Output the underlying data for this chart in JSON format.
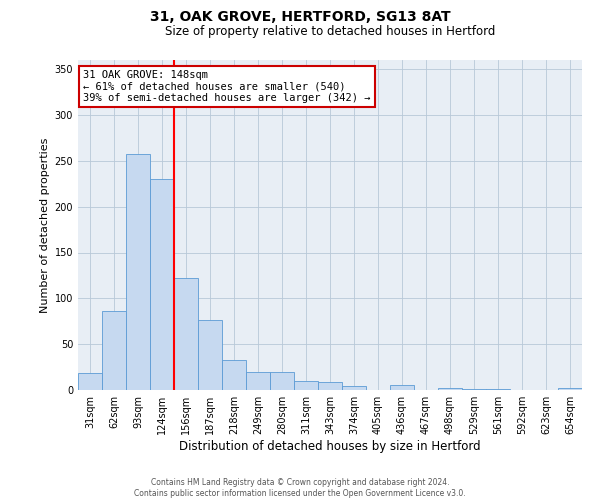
{
  "title": "31, OAK GROVE, HERTFORD, SG13 8AT",
  "subtitle": "Size of property relative to detached houses in Hertford",
  "xlabel": "Distribution of detached houses by size in Hertford",
  "ylabel": "Number of detached properties",
  "categories": [
    "31sqm",
    "62sqm",
    "93sqm",
    "124sqm",
    "156sqm",
    "187sqm",
    "218sqm",
    "249sqm",
    "280sqm",
    "311sqm",
    "343sqm",
    "374sqm",
    "405sqm",
    "436sqm",
    "467sqm",
    "498sqm",
    "529sqm",
    "561sqm",
    "592sqm",
    "623sqm",
    "654sqm"
  ],
  "values": [
    19,
    86,
    257,
    230,
    122,
    76,
    33,
    20,
    20,
    10,
    9,
    4,
    0,
    6,
    0,
    2,
    1,
    1,
    0,
    0,
    2
  ],
  "bar_color": "#c6d9f0",
  "bar_edge_color": "#5b9bd5",
  "vline_x_index": 4,
  "vline_color": "#ff0000",
  "annotation_title": "31 OAK GROVE: 148sqm",
  "annotation_line1": "← 61% of detached houses are smaller (540)",
  "annotation_line2": "39% of semi-detached houses are larger (342) →",
  "annotation_box_facecolor": "#ffffff",
  "annotation_box_edgecolor": "#cc0000",
  "ylim": [
    0,
    360
  ],
  "yticks": [
    0,
    50,
    100,
    150,
    200,
    250,
    300,
    350
  ],
  "footer1": "Contains HM Land Registry data © Crown copyright and database right 2024.",
  "footer2": "Contains public sector information licensed under the Open Government Licence v3.0.",
  "bg_color": "#ffffff",
  "plot_bg_color": "#e8eef5",
  "grid_color": "#b8c8d8",
  "title_fontsize": 10,
  "subtitle_fontsize": 8.5,
  "ylabel_fontsize": 8,
  "xlabel_fontsize": 8.5,
  "tick_fontsize": 7,
  "annotation_fontsize": 7.5,
  "footer_fontsize": 5.5
}
